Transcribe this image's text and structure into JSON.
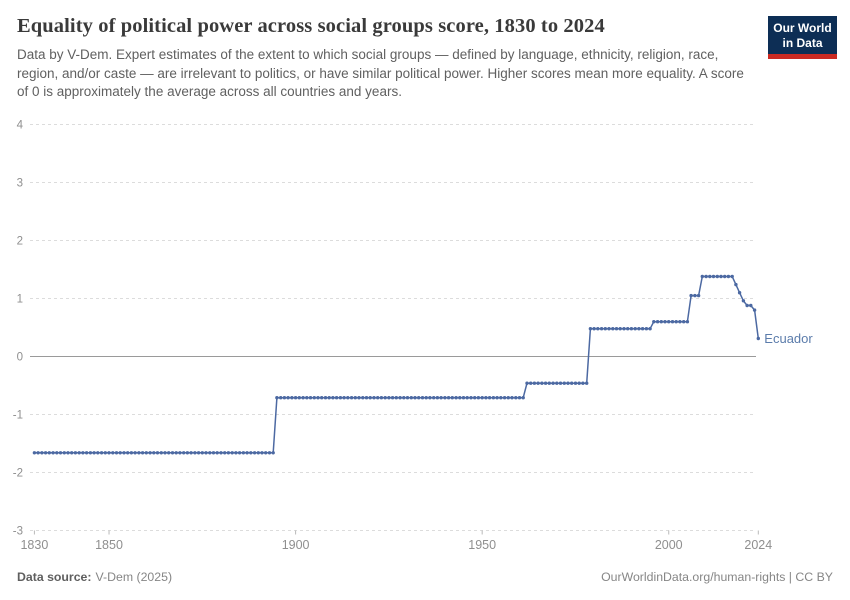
{
  "header": {
    "title": "Equality of political power across social groups score, 1830 to 2024",
    "subtitle": "Data by V-Dem. Expert estimates of the extent to which social groups — defined by language, ethnicity, religion, race, region, and/or caste — are irrelevant to politics, or have similar political power. Higher scores mean more equality. A score of 0 is approximately the average across all countries and years.",
    "logo": {
      "line1": "Our World",
      "line2": "in Data",
      "bg_color": "#0D2E55",
      "bar_color": "#CB2A22"
    }
  },
  "chart_data": {
    "type": "line",
    "title": "Equality of political power across social groups score, 1830 to 2024",
    "entity": "Ecuador",
    "xlabel": "",
    "ylabel": "",
    "xlim": [
      1830,
      2024
    ],
    "ylim": [
      -3,
      4
    ],
    "x_ticks": [
      1830,
      1850,
      1900,
      1950,
      2000,
      2024
    ],
    "y_ticks": [
      4,
      3,
      2,
      1,
      0,
      -1,
      -2,
      -3
    ],
    "grid": "horizontal dashed gridlines, solid zero line",
    "legend_position": "label at end of line",
    "line_color": "#4C69A2",
    "label_color": "#5B7CAB",
    "axis_text_color": "#8f8f8f",
    "segments": [
      {
        "start_year": 1830,
        "end_year": 1894,
        "value": -1.66
      },
      {
        "start_year": 1895,
        "end_year": 1961,
        "value": -0.71
      },
      {
        "start_year": 1962,
        "end_year": 1978,
        "value": -0.46
      },
      {
        "start_year": 1979,
        "end_year": 1995,
        "value": 0.48
      },
      {
        "start_year": 1996,
        "end_year": 2005,
        "value": 0.6
      },
      {
        "start_year": 2006,
        "end_year": 2008,
        "value": 1.05
      },
      {
        "start_year": 2009,
        "end_year": 2017,
        "value": 1.38
      }
    ],
    "recent_points": [
      {
        "year": 2018,
        "value": 1.24
      },
      {
        "year": 2019,
        "value": 1.1
      },
      {
        "year": 2020,
        "value": 0.96
      },
      {
        "year": 2021,
        "value": 0.88
      },
      {
        "year": 2022,
        "value": 0.88
      },
      {
        "year": 2023,
        "value": 0.8
      },
      {
        "year": 2024,
        "value": 0.31
      }
    ]
  },
  "footer": {
    "source_label": "Data source:",
    "source_value": "V-Dem (2025)",
    "credit": "OurWorldinData.org/human-rights | CC BY"
  }
}
